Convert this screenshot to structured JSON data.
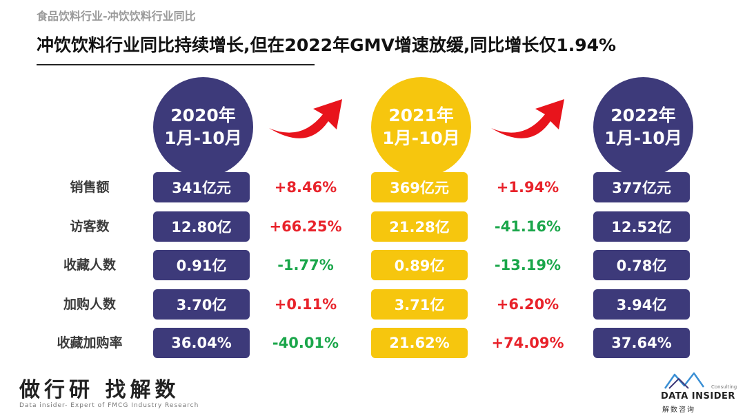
{
  "header": {
    "subtitle": "食品饮料行业-冲饮饮料行业同比",
    "title": "冲饮饮料行业同比持续增长,但在2022年GMV增速放缓,同比增长仅1.94%"
  },
  "periods": [
    {
      "year": "2020年",
      "range": "1月-10月"
    },
    {
      "year": "2021年",
      "range": "1月-10月"
    },
    {
      "year": "2022年",
      "range": "1月-10月"
    }
  ],
  "metrics": [
    {
      "label": "销售额",
      "v2020": "341亿元",
      "change1": "+8.46%",
      "v2021": "369亿元",
      "change2": "+1.94%",
      "v2022": "377亿元"
    },
    {
      "label": "访客数",
      "v2020": "12.80亿",
      "change1": "+66.25%",
      "v2021": "21.28亿",
      "change2": "-41.16%",
      "v2022": "12.52亿"
    },
    {
      "label": "收藏人数",
      "v2020": "0.91亿",
      "change1": "-1.77%",
      "v2021": "0.89亿",
      "change2": "-13.19%",
      "v2022": "0.78亿"
    },
    {
      "label": "加购人数",
      "v2020": "3.70亿",
      "change1": "+0.11%",
      "v2021": "3.71亿",
      "change2": "+6.20%",
      "v2022": "3.94亿"
    },
    {
      "label": "收藏加购率",
      "v2020": "36.04%",
      "change1": "-40.01%",
      "v2021": "21.62%",
      "change2": "+74.09%",
      "v2022": "37.64%"
    }
  ],
  "colors": {
    "navy": "#3d3a7a",
    "gold": "#f6c60e",
    "positive": "#e8222a",
    "negative": "#1aa64a",
    "arrow": "#e8141c"
  },
  "icons": {
    "arrow": "red-curved-up-arrow-icon",
    "logo": "data-insider-logo"
  },
  "footer": {
    "brand": "做行研 找解数",
    "tagline": "Data insider- Expert of FMCG Industry Research",
    "logo_small": "Consulting",
    "logo_name": "DATA INSIDER",
    "logo_cn": "解数咨询"
  }
}
